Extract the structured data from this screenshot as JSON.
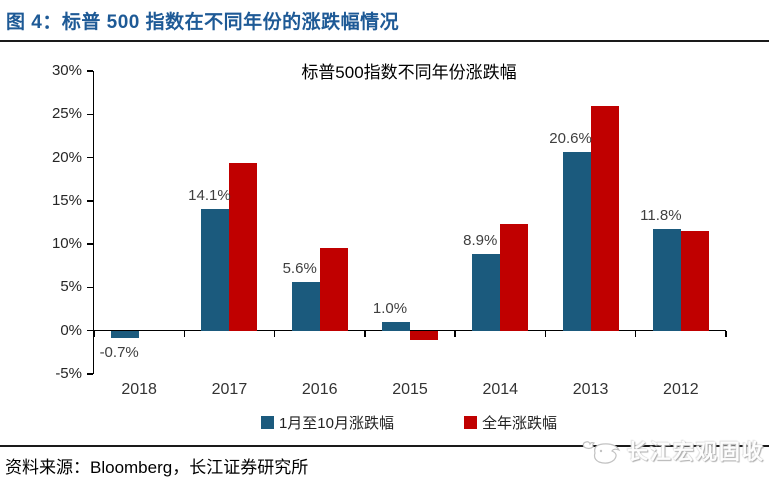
{
  "figure_label": "图 4：标普 500 指数在不同年份的涨跌幅情况",
  "chart_data": {
    "type": "bar",
    "title": "标普500指数不同年份涨跌幅",
    "categories": [
      "2018",
      "2017",
      "2016",
      "2015",
      "2014",
      "2013",
      "2012"
    ],
    "series": [
      {
        "name": "1月至10月涨跌幅",
        "color": "#1B5A7D",
        "values": [
          -0.7,
          14.1,
          5.6,
          1.0,
          8.9,
          20.6,
          11.8
        ],
        "data_labels": [
          "-0.7%",
          "14.1%",
          "5.6%",
          "1.0%",
          "8.9%",
          "20.6%",
          "11.8%"
        ]
      },
      {
        "name": "全年涨跌幅",
        "color": "#C00000",
        "values": [
          null,
          19.4,
          9.5,
          -1.0,
          12.3,
          26.0,
          11.5
        ],
        "data_labels": [
          null,
          null,
          null,
          null,
          null,
          null,
          null
        ]
      }
    ],
    "ylim": [
      -5,
      30
    ],
    "ytick_step": 5,
    "ytick_labels": [
      "30%",
      "25%",
      "20%",
      "15%",
      "10%",
      "5%",
      "0%",
      "-5%"
    ],
    "grid": false,
    "legend_position": "bottom"
  },
  "footer": {
    "source": "资料来源：Bloomberg，长江证券研究所",
    "watermark": "长江宏观固收"
  },
  "colors": {
    "header_blue": "#1E5A96",
    "bar_blue": "#1B5A7D",
    "bar_red": "#C00000",
    "axis_black": "#000000",
    "data_label_gray": "#3F3F3F"
  }
}
